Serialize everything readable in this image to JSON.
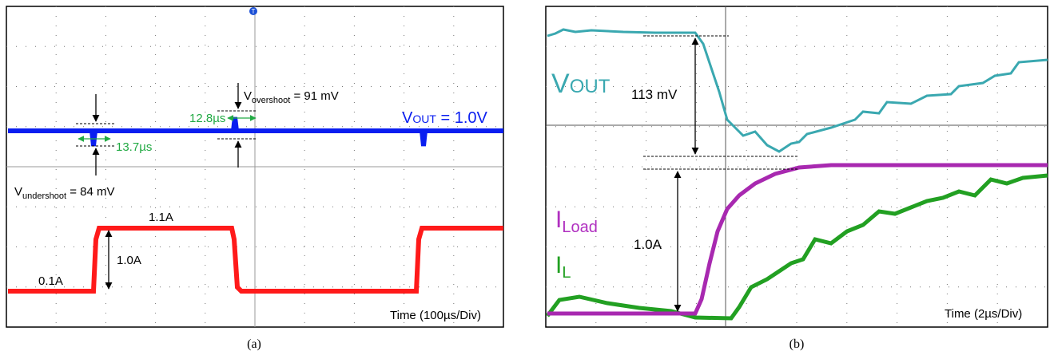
{
  "panel_a": {
    "caption": "(a)",
    "trigger": "T",
    "time_label": "Time (100µs/Div)",
    "vout_label": {
      "base": "V",
      "sub": "OUT",
      "rest": " = 1.0V"
    },
    "overshoot": {
      "base": "V",
      "sub": "overshoot",
      "rest": " = 91 mV"
    },
    "undershoot": {
      "base": "V",
      "sub": "undershoot",
      "rest": " = 84 mV"
    },
    "overshoot_width": "12.8µs",
    "undershoot_width": "13.7µs",
    "high_level": "1.1A",
    "low_level": "0.1A",
    "step": "1.0A"
  },
  "panel_b": {
    "caption": "(b)",
    "time_label": "Time (2µs/Div)",
    "vout_label": {
      "base": "V",
      "sub": "OUT"
    },
    "dip": "113 mV",
    "step": "1.0A",
    "iload_label": {
      "base": "I",
      "sub": "Load"
    },
    "il_label": {
      "base": "I",
      "sub": "L"
    }
  }
}
